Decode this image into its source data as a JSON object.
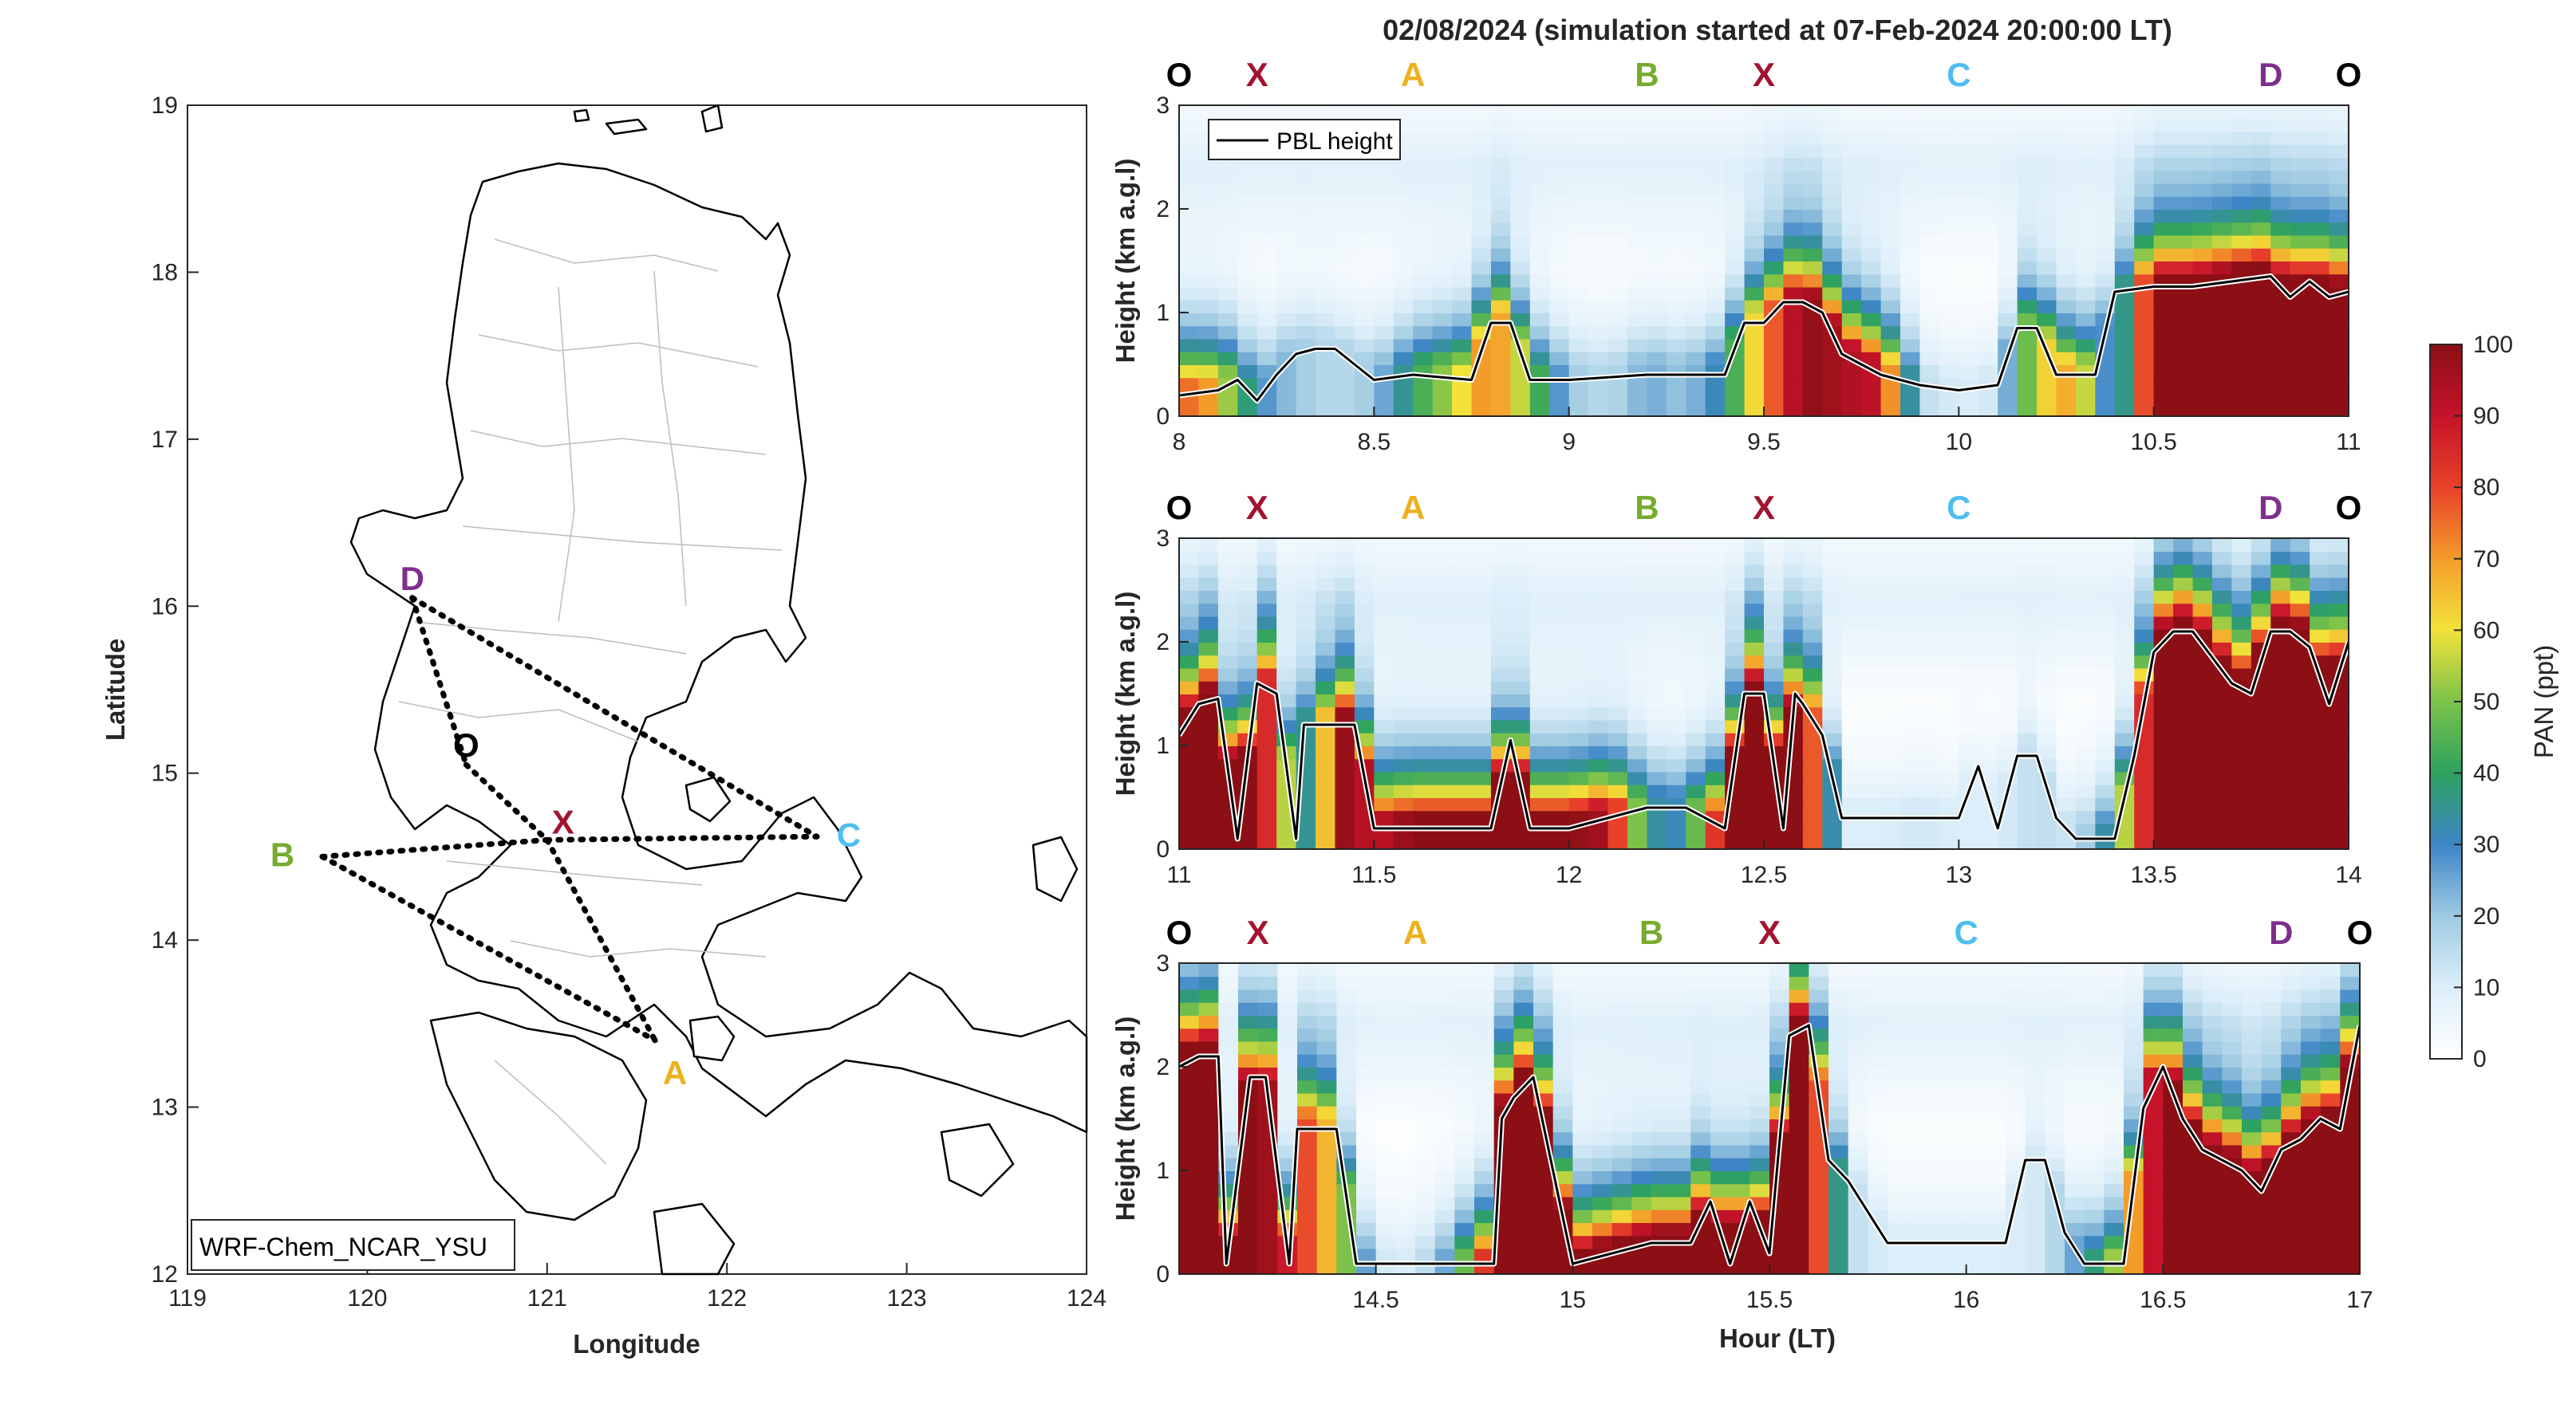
{
  "figure_title": "02/08/2024 (simulation started at 07-Feb-2024 20:00:00 LT)",
  "colors": {
    "O": "#000000",
    "X": "#a2142f",
    "A": "#edb120",
    "B": "#77ac30",
    "C": "#4dbeee",
    "D": "#7e2f8e"
  },
  "chart_data": [
    {
      "type": "map",
      "xlabel": "Longitude",
      "ylabel": "Latitude",
      "xlim": [
        119,
        124
      ],
      "ylim": [
        12,
        19
      ],
      "xticks": [
        "119",
        "120",
        "121",
        "122",
        "123",
        "124"
      ],
      "yticks": [
        "12",
        "13",
        "14",
        "15",
        "16",
        "17",
        "18",
        "19"
      ],
      "model_label": "WRF-Chem_NCAR_YSU",
      "points": [
        {
          "name": "D",
          "lon": 120.25,
          "lat": 16.05
        },
        {
          "name": "O",
          "lon": 120.55,
          "lat": 15.05
        },
        {
          "name": "X",
          "lon": 121.0,
          "lat": 14.6
        },
        {
          "name": "B",
          "lon": 119.75,
          "lat": 14.5
        },
        {
          "name": "C",
          "lon": 122.5,
          "lat": 14.62
        },
        {
          "name": "A",
          "lon": 121.6,
          "lat": 13.4
        }
      ],
      "route_lines": [
        [
          "D",
          "C"
        ],
        [
          "D",
          "O"
        ],
        [
          "O",
          "X"
        ],
        [
          "B",
          "X"
        ],
        [
          "X",
          "C"
        ],
        [
          "B",
          "A"
        ],
        [
          "X",
          "A"
        ]
      ]
    },
    {
      "type": "heatmap",
      "ylabel": "Height (km a.g.l)",
      "xlabel": "",
      "xlim": [
        8,
        11
      ],
      "ylim": [
        0,
        3
      ],
      "xticks": [
        "8",
        "8.5",
        "9",
        "9.5",
        "10",
        "10.5",
        "11"
      ],
      "yticks": [
        "0",
        "1",
        "2",
        "3"
      ],
      "legend": "PBL height",
      "route_markers": [
        {
          "label": "O",
          "x": 8.0
        },
        {
          "label": "X",
          "x": 8.2
        },
        {
          "label": "A",
          "x": 8.6
        },
        {
          "label": "B",
          "x": 9.2
        },
        {
          "label": "X",
          "x": 9.5
        },
        {
          "label": "C",
          "x": 10.0
        },
        {
          "label": "D",
          "x": 10.8
        },
        {
          "label": "O",
          "x": 11.0
        }
      ],
      "pbl": [
        [
          8.0,
          0.2
        ],
        [
          8.1,
          0.25
        ],
        [
          8.15,
          0.35
        ],
        [
          8.2,
          0.15
        ],
        [
          8.25,
          0.4
        ],
        [
          8.3,
          0.6
        ],
        [
          8.35,
          0.65
        ],
        [
          8.4,
          0.65
        ],
        [
          8.5,
          0.35
        ],
        [
          8.6,
          0.4
        ],
        [
          8.75,
          0.35
        ],
        [
          8.8,
          0.9
        ],
        [
          8.85,
          0.9
        ],
        [
          8.9,
          0.35
        ],
        [
          9.0,
          0.35
        ],
        [
          9.2,
          0.4
        ],
        [
          9.4,
          0.4
        ],
        [
          9.45,
          0.9
        ],
        [
          9.5,
          0.9
        ],
        [
          9.55,
          1.1
        ],
        [
          9.6,
          1.1
        ],
        [
          9.65,
          1.0
        ],
        [
          9.7,
          0.6
        ],
        [
          9.8,
          0.4
        ],
        [
          9.9,
          0.3
        ],
        [
          10.0,
          0.25
        ],
        [
          10.1,
          0.3
        ],
        [
          10.15,
          0.85
        ],
        [
          10.2,
          0.85
        ],
        [
          10.25,
          0.4
        ],
        [
          10.35,
          0.4
        ],
        [
          10.4,
          1.2
        ],
        [
          10.5,
          1.25
        ],
        [
          10.6,
          1.25
        ],
        [
          10.7,
          1.3
        ],
        [
          10.8,
          1.35
        ],
        [
          10.85,
          1.15
        ],
        [
          10.9,
          1.3
        ],
        [
          10.95,
          1.15
        ],
        [
          11.0,
          1.2
        ]
      ],
      "pan_profile": [
        [
          8.0,
          70
        ],
        [
          8.05,
          80
        ],
        [
          8.1,
          60
        ],
        [
          8.15,
          45
        ],
        [
          8.2,
          30
        ],
        [
          8.3,
          20
        ],
        [
          8.4,
          15
        ],
        [
          8.5,
          20
        ],
        [
          8.6,
          40
        ],
        [
          8.7,
          55
        ],
        [
          8.8,
          75
        ],
        [
          8.9,
          50
        ],
        [
          9.0,
          20
        ],
        [
          9.1,
          15
        ],
        [
          9.2,
          25
        ],
        [
          9.3,
          20
        ],
        [
          9.4,
          35
        ],
        [
          9.5,
          70
        ],
        [
          9.6,
          100
        ],
        [
          9.7,
          95
        ],
        [
          9.8,
          90
        ],
        [
          9.9,
          15
        ],
        [
          10.0,
          10
        ],
        [
          10.1,
          12
        ],
        [
          10.2,
          60
        ],
        [
          10.3,
          70
        ],
        [
          10.4,
          15
        ],
        [
          10.5,
          100
        ],
        [
          10.6,
          100
        ],
        [
          10.7,
          100
        ],
        [
          10.8,
          100
        ],
        [
          10.9,
          100
        ],
        [
          11.0,
          100
        ]
      ]
    },
    {
      "type": "heatmap",
      "ylabel": "Height (km a.g.l)",
      "xlabel": "",
      "xlim": [
        11,
        14
      ],
      "ylim": [
        0,
        3
      ],
      "xticks": [
        "11",
        "11.5",
        "12",
        "12.5",
        "13",
        "13.5",
        "14"
      ],
      "yticks": [
        "0",
        "1",
        "2",
        "3"
      ],
      "route_markers": [
        {
          "label": "O",
          "x": 11.0
        },
        {
          "label": "X",
          "x": 11.2
        },
        {
          "label": "A",
          "x": 11.6
        },
        {
          "label": "B",
          "x": 12.2
        },
        {
          "label": "X",
          "x": 12.5
        },
        {
          "label": "C",
          "x": 13.0
        },
        {
          "label": "D",
          "x": 13.8
        },
        {
          "label": "O",
          "x": 14.0
        }
      ],
      "pbl": [
        [
          11.0,
          1.1
        ],
        [
          11.05,
          1.4
        ],
        [
          11.1,
          1.45
        ],
        [
          11.15,
          0.1
        ],
        [
          11.2,
          1.6
        ],
        [
          11.25,
          1.5
        ],
        [
          11.3,
          0.1
        ],
        [
          11.32,
          1.2
        ],
        [
          11.45,
          1.2
        ],
        [
          11.5,
          0.2
        ],
        [
          11.6,
          0.2
        ],
        [
          11.7,
          0.2
        ],
        [
          11.8,
          0.2
        ],
        [
          11.85,
          1.05
        ],
        [
          11.9,
          0.2
        ],
        [
          12.0,
          0.2
        ],
        [
          12.1,
          0.3
        ],
        [
          12.2,
          0.4
        ],
        [
          12.3,
          0.4
        ],
        [
          12.4,
          0.2
        ],
        [
          12.45,
          1.5
        ],
        [
          12.5,
          1.5
        ],
        [
          12.55,
          0.2
        ],
        [
          12.58,
          1.5
        ],
        [
          12.6,
          1.4
        ],
        [
          12.65,
          1.1
        ],
        [
          12.7,
          0.3
        ],
        [
          12.8,
          0.3
        ],
        [
          12.9,
          0.3
        ],
        [
          13.0,
          0.3
        ],
        [
          13.05,
          0.8
        ],
        [
          13.1,
          0.2
        ],
        [
          13.15,
          0.9
        ],
        [
          13.2,
          0.9
        ],
        [
          13.25,
          0.3
        ],
        [
          13.3,
          0.1
        ],
        [
          13.4,
          0.1
        ],
        [
          13.45,
          0.9
        ],
        [
          13.5,
          1.9
        ],
        [
          13.55,
          2.1
        ],
        [
          13.6,
          2.1
        ],
        [
          13.7,
          1.6
        ],
        [
          13.75,
          1.5
        ],
        [
          13.8,
          2.1
        ],
        [
          13.85,
          2.1
        ],
        [
          13.9,
          1.95
        ],
        [
          13.95,
          1.4
        ],
        [
          14.0,
          2.0
        ]
      ],
      "pan_profile": [
        [
          11.0,
          100
        ],
        [
          11.1,
          100
        ],
        [
          11.2,
          100
        ],
        [
          11.3,
          40
        ],
        [
          11.35,
          30
        ],
        [
          11.4,
          100
        ],
        [
          11.5,
          90
        ],
        [
          11.6,
          100
        ],
        [
          11.7,
          100
        ],
        [
          11.8,
          100
        ],
        [
          11.9,
          100
        ],
        [
          12.0,
          100
        ],
        [
          12.1,
          95
        ],
        [
          12.2,
          35
        ],
        [
          12.3,
          30
        ],
        [
          12.4,
          100
        ],
        [
          12.5,
          100
        ],
        [
          12.6,
          100
        ],
        [
          12.7,
          10
        ],
        [
          12.8,
          10
        ],
        [
          12.9,
          12
        ],
        [
          13.0,
          10
        ],
        [
          13.1,
          10
        ],
        [
          13.2,
          15
        ],
        [
          13.3,
          12
        ],
        [
          13.4,
          40
        ],
        [
          13.5,
          100
        ],
        [
          13.6,
          100
        ],
        [
          13.7,
          100
        ],
        [
          13.8,
          100
        ],
        [
          13.9,
          100
        ],
        [
          14.0,
          100
        ]
      ]
    },
    {
      "type": "heatmap",
      "ylabel": "Height (km a.g.l)",
      "xlabel": "Hour (LT)",
      "xlim": [
        14,
        17
      ],
      "ylim": [
        0,
        3
      ],
      "xticks": [
        "14.5",
        "15",
        "15.5",
        "16",
        "16.5",
        "17"
      ],
      "yticks": [
        "0",
        "1",
        "2",
        "3"
      ],
      "route_markers": [
        {
          "label": "O",
          "x": 14.0
        },
        {
          "label": "X",
          "x": 14.2
        },
        {
          "label": "A",
          "x": 14.6
        },
        {
          "label": "B",
          "x": 15.2
        },
        {
          "label": "X",
          "x": 15.5
        },
        {
          "label": "C",
          "x": 16.0
        },
        {
          "label": "D",
          "x": 16.8
        },
        {
          "label": "O",
          "x": 17.0
        }
      ],
      "pbl": [
        [
          14.0,
          2.0
        ],
        [
          14.05,
          2.1
        ],
        [
          14.1,
          2.1
        ],
        [
          14.12,
          0.1
        ],
        [
          14.18,
          1.9
        ],
        [
          14.22,
          1.9
        ],
        [
          14.28,
          0.1
        ],
        [
          14.3,
          1.4
        ],
        [
          14.4,
          1.4
        ],
        [
          14.45,
          0.1
        ],
        [
          14.6,
          0.1
        ],
        [
          14.7,
          0.1
        ],
        [
          14.8,
          0.1
        ],
        [
          14.82,
          1.5
        ],
        [
          14.85,
          1.7
        ],
        [
          14.9,
          1.9
        ],
        [
          15.0,
          0.1
        ],
        [
          15.1,
          0.2
        ],
        [
          15.2,
          0.3
        ],
        [
          15.3,
          0.3
        ],
        [
          15.35,
          0.7
        ],
        [
          15.4,
          0.1
        ],
        [
          15.45,
          0.7
        ],
        [
          15.5,
          0.2
        ],
        [
          15.55,
          2.3
        ],
        [
          15.6,
          2.4
        ],
        [
          15.65,
          1.1
        ],
        [
          15.7,
          0.9
        ],
        [
          15.8,
          0.3
        ],
        [
          15.9,
          0.3
        ],
        [
          16.0,
          0.3
        ],
        [
          16.1,
          0.3
        ],
        [
          16.15,
          1.1
        ],
        [
          16.2,
          1.1
        ],
        [
          16.25,
          0.4
        ],
        [
          16.3,
          0.1
        ],
        [
          16.4,
          0.1
        ],
        [
          16.45,
          1.6
        ],
        [
          16.5,
          2.0
        ],
        [
          16.55,
          1.5
        ],
        [
          16.6,
          1.2
        ],
        [
          16.7,
          1.0
        ],
        [
          16.75,
          0.8
        ],
        [
          16.8,
          1.2
        ],
        [
          16.85,
          1.3
        ],
        [
          16.9,
          1.5
        ],
        [
          16.95,
          1.4
        ],
        [
          17.0,
          2.4
        ]
      ],
      "pan_profile": [
        [
          14.0,
          100
        ],
        [
          14.1,
          100
        ],
        [
          14.2,
          100
        ],
        [
          14.3,
          85
        ],
        [
          14.4,
          60
        ],
        [
          14.45,
          40
        ],
        [
          14.5,
          12
        ],
        [
          14.6,
          10
        ],
        [
          14.7,
          30
        ],
        [
          14.8,
          100
        ],
        [
          14.9,
          100
        ],
        [
          15.0,
          100
        ],
        [
          15.1,
          100
        ],
        [
          15.2,
          100
        ],
        [
          15.3,
          100
        ],
        [
          15.4,
          100
        ],
        [
          15.5,
          100
        ],
        [
          15.6,
          100
        ],
        [
          15.7,
          15
        ],
        [
          15.8,
          10
        ],
        [
          15.9,
          10
        ],
        [
          16.0,
          10
        ],
        [
          16.1,
          10
        ],
        [
          16.2,
          12
        ],
        [
          16.3,
          30
        ],
        [
          16.4,
          60
        ],
        [
          16.5,
          100
        ],
        [
          16.6,
          100
        ],
        [
          16.7,
          100
        ],
        [
          16.8,
          100
        ],
        [
          16.9,
          100
        ],
        [
          17.0,
          100
        ]
      ]
    },
    {
      "type": "colorbar",
      "label": "PAN (ppt)",
      "range": [
        0,
        100
      ],
      "ticks": [
        "0",
        "10",
        "20",
        "30",
        "40",
        "50",
        "60",
        "70",
        "80",
        "90",
        "100"
      ]
    }
  ]
}
